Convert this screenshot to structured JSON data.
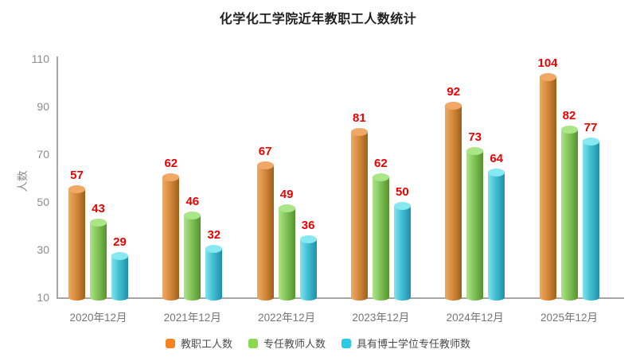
{
  "title": "化学化工学院近年教职工人数统计",
  "chart_data": {
    "type": "bar",
    "style": "3d-cylinder",
    "title": "化学化工学院近年教职工人数统计",
    "categories": [
      "2020年12月",
      "2021年12月",
      "2022年12月",
      "2023年12月",
      "2024年12月",
      "2025年12月"
    ],
    "series": [
      {
        "name": "教职工人数",
        "values": [
          57,
          62,
          67,
          81,
          92,
          104
        ],
        "legend_color": "#f58320",
        "cap_color": "#f1a765",
        "body_gradient": [
          "#ecaa63",
          "#d88d40",
          "#a05e18"
        ]
      },
      {
        "name": "专任教师人数",
        "values": [
          43,
          46,
          49,
          62,
          73,
          82
        ],
        "legend_color": "#8cd94e",
        "cap_color": "#a8e687",
        "body_gradient": [
          "#b0e48a",
          "#85c65c",
          "#55932d"
        ]
      },
      {
        "name": "具有博士学位专任教师数",
        "values": [
          29,
          32,
          36,
          50,
          64,
          77
        ],
        "legend_color": "#2ec9e6",
        "cap_color": "#86e9f1",
        "body_gradient": [
          "#82e3ed",
          "#45c2d6",
          "#1e90a8"
        ]
      }
    ],
    "ylabel": "人数",
    "ylim": [
      10,
      110
    ],
    "yticks": [
      110,
      90,
      70,
      50,
      30,
      10
    ],
    "grid": false,
    "legend_position": "bottom",
    "value_label_color": "#ec0000",
    "axis_color": "#a6a6a6",
    "tick_label_color": "#8c8c8c",
    "xlabel": ""
  }
}
